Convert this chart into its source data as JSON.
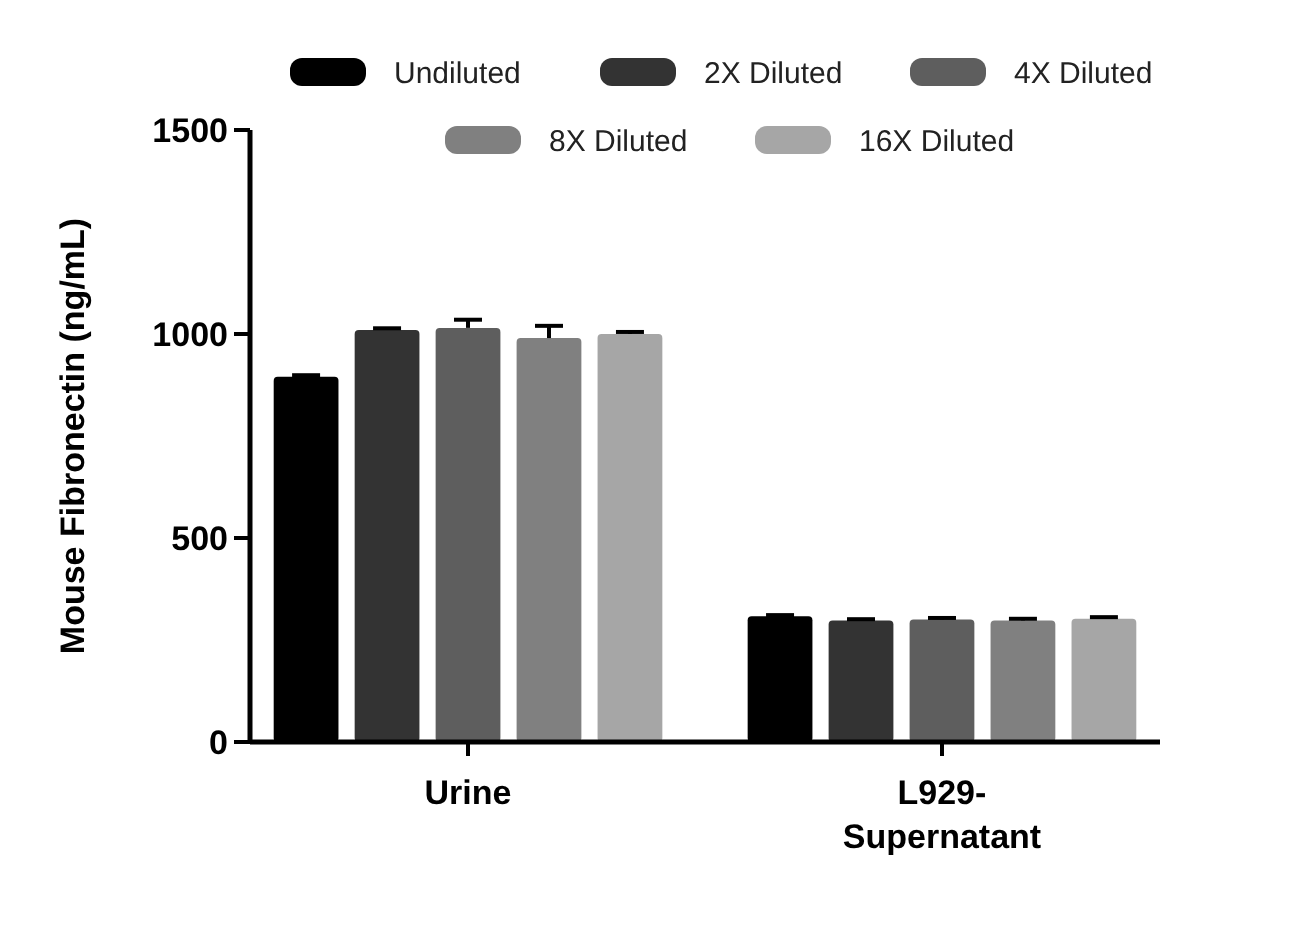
{
  "chart_data": {
    "type": "bar",
    "ylabel": "Mouse Fibronectin (ng/mL)",
    "categories": [
      "Urine",
      "L929-Supernatant"
    ],
    "series": [
      {
        "name": "Undiluted",
        "color": "#000000",
        "values": [
          895,
          308
        ],
        "errors": [
          4,
          3
        ]
      },
      {
        "name": "2X Diluted",
        "color": "#333333",
        "values": [
          1010,
          298
        ],
        "errors": [
          4,
          3
        ]
      },
      {
        "name": "4X Diluted",
        "color": "#5e5e5e",
        "values": [
          1015,
          300
        ],
        "errors": [
          20,
          4
        ]
      },
      {
        "name": "8X Diluted",
        "color": "#808080",
        "values": [
          990,
          298
        ],
        "errors": [
          30,
          4
        ]
      },
      {
        "name": "16X Diluted",
        "color": "#a6a6a6",
        "values": [
          1000,
          302
        ],
        "errors": [
          5,
          4
        ]
      }
    ],
    "ylim": [
      0,
      1500
    ],
    "yticks": [
      0,
      500,
      1000,
      1500
    ],
    "legend": "top",
    "grid": false
  }
}
